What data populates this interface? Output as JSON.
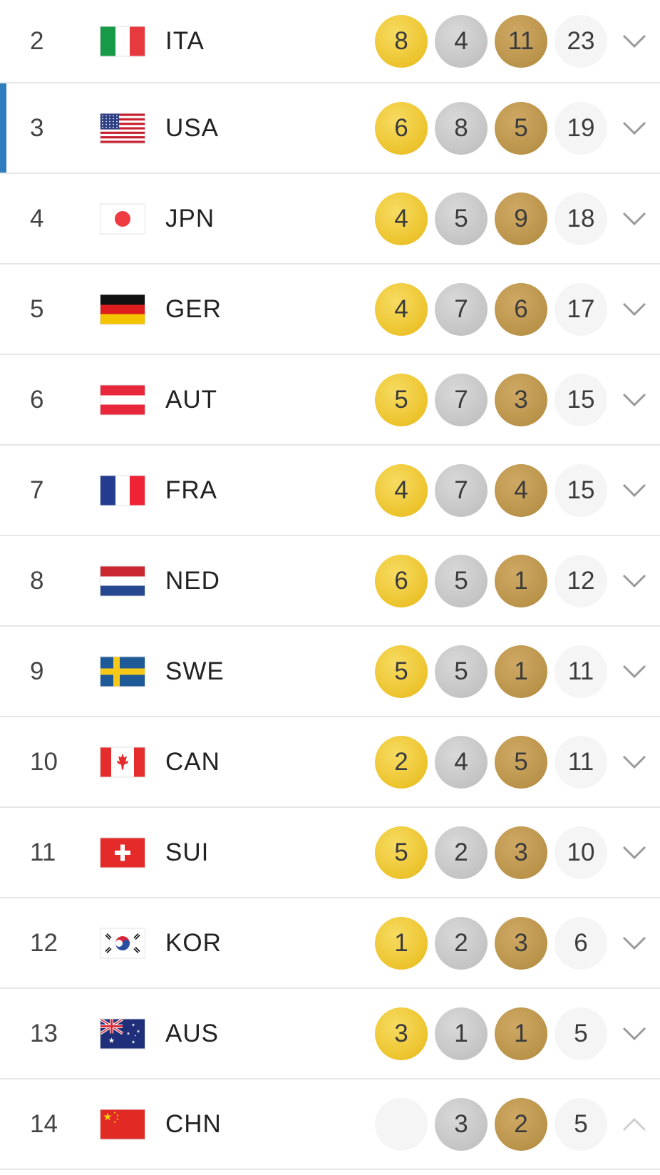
{
  "rows": [
    {
      "rank": "2",
      "country": "ITA",
      "gold": "8",
      "silver": "4",
      "bronze": "11",
      "total": "23",
      "flag": "ita",
      "expanded": false
    },
    {
      "rank": "3",
      "country": "USA",
      "gold": "6",
      "silver": "8",
      "bronze": "5",
      "total": "19",
      "flag": "usa",
      "expanded": false,
      "highlighted": true
    },
    {
      "rank": "4",
      "country": "JPN",
      "gold": "4",
      "silver": "5",
      "bronze": "9",
      "total": "18",
      "flag": "jpn",
      "expanded": false
    },
    {
      "rank": "5",
      "country": "GER",
      "gold": "4",
      "silver": "7",
      "bronze": "6",
      "total": "17",
      "flag": "ger",
      "expanded": false
    },
    {
      "rank": "6",
      "country": "AUT",
      "gold": "5",
      "silver": "7",
      "bronze": "3",
      "total": "15",
      "flag": "aut",
      "expanded": false
    },
    {
      "rank": "7",
      "country": "FRA",
      "gold": "4",
      "silver": "7",
      "bronze": "4",
      "total": "15",
      "flag": "fra",
      "expanded": false
    },
    {
      "rank": "8",
      "country": "NED",
      "gold": "6",
      "silver": "5",
      "bronze": "1",
      "total": "12",
      "flag": "ned",
      "expanded": false
    },
    {
      "rank": "9",
      "country": "SWE",
      "gold": "5",
      "silver": "5",
      "bronze": "1",
      "total": "11",
      "flag": "swe",
      "expanded": false
    },
    {
      "rank": "10",
      "country": "CAN",
      "gold": "2",
      "silver": "4",
      "bronze": "5",
      "total": "11",
      "flag": "can",
      "expanded": false
    },
    {
      "rank": "11",
      "country": "SUI",
      "gold": "5",
      "silver": "2",
      "bronze": "3",
      "total": "10",
      "flag": "sui",
      "expanded": false
    },
    {
      "rank": "12",
      "country": "KOR",
      "gold": "1",
      "silver": "2",
      "bronze": "3",
      "total": "6",
      "flag": "kor",
      "expanded": false
    },
    {
      "rank": "13",
      "country": "AUS",
      "gold": "3",
      "silver": "1",
      "bronze": "1",
      "total": "5",
      "flag": "aus",
      "expanded": false
    },
    {
      "rank": "14",
      "country": "CHN",
      "gold": "",
      "silver": "3",
      "bronze": "2",
      "total": "5",
      "flag": "chn",
      "expanded": true
    }
  ],
  "colors": {
    "gold": "#ecc32c",
    "silver": "#c4c4c4",
    "bronze": "#ba934a",
    "total_bg": "#f5f5f5",
    "highlight_accent": "#2e7dbf",
    "chevron": "#9a9a9a",
    "chevron_up": "#d0d0d0"
  },
  "icons": {
    "expand": "chevron-down-icon",
    "collapse": "chevron-up-icon"
  }
}
